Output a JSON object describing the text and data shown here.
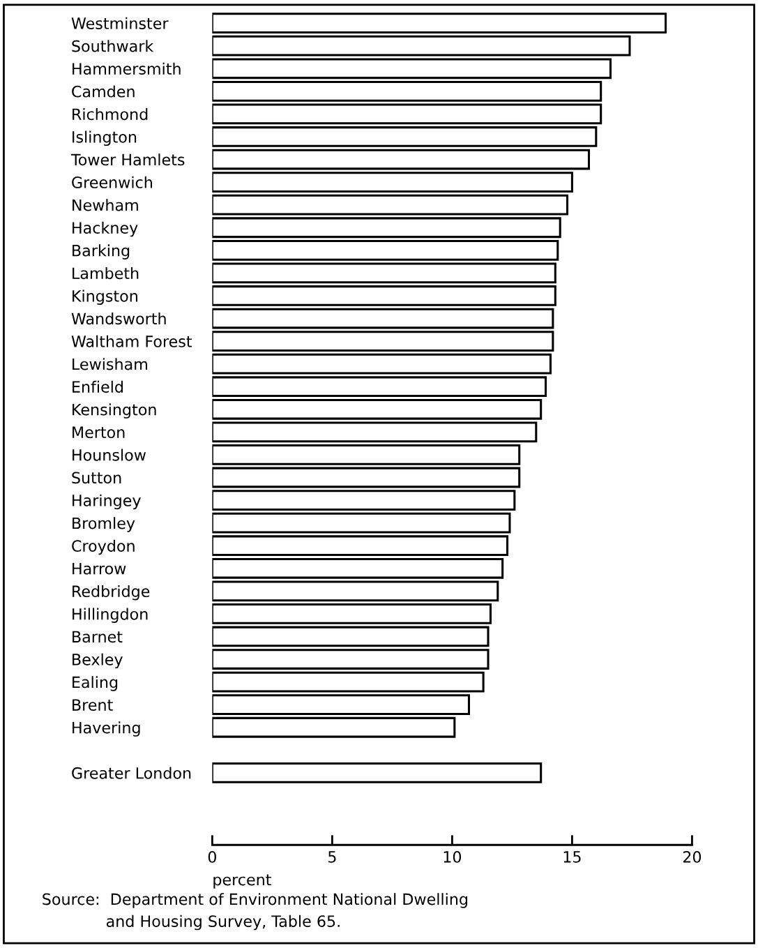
{
  "chart_data": {
    "type": "bar",
    "orientation": "horizontal",
    "categories": [
      "Westminster",
      "Southwark",
      "Hammersmith",
      "Camden",
      "Richmond",
      "Islington",
      "Tower Hamlets",
      "Greenwich",
      "Newham",
      "Hackney",
      "Barking",
      "Lambeth",
      "Kingston",
      "Wandsworth",
      "Waltham Forest",
      "Lewisham",
      "Enfield",
      "Kensington",
      "Merton",
      "Hounslow",
      "Sutton",
      "Haringey",
      "Bromley",
      "Croydon",
      "Harrow",
      "Redbridge",
      "Hillingdon",
      "Barnet",
      "Bexley",
      "Ealing",
      "Brent",
      "Havering",
      null,
      "Greater London"
    ],
    "values": [
      18.9,
      17.4,
      16.6,
      16.2,
      16.2,
      16.0,
      15.7,
      15.0,
      14.8,
      14.5,
      14.4,
      14.3,
      14.3,
      14.2,
      14.2,
      14.1,
      13.9,
      13.7,
      13.5,
      12.8,
      12.8,
      12.6,
      12.4,
      12.3,
      12.1,
      11.9,
      11.6,
      11.5,
      11.5,
      11.3,
      10.7,
      10.1,
      null,
      13.7
    ],
    "color": "#ffffff",
    "xlim": [
      0,
      20
    ],
    "xticks": [
      0,
      5,
      10,
      15,
      20
    ],
    "xlabel": "percent",
    "grid": false,
    "legend": false,
    "annotations": [
      "Source:  Department of Environment National Dwelling\n             and Housing Survey, Table 65."
    ]
  }
}
